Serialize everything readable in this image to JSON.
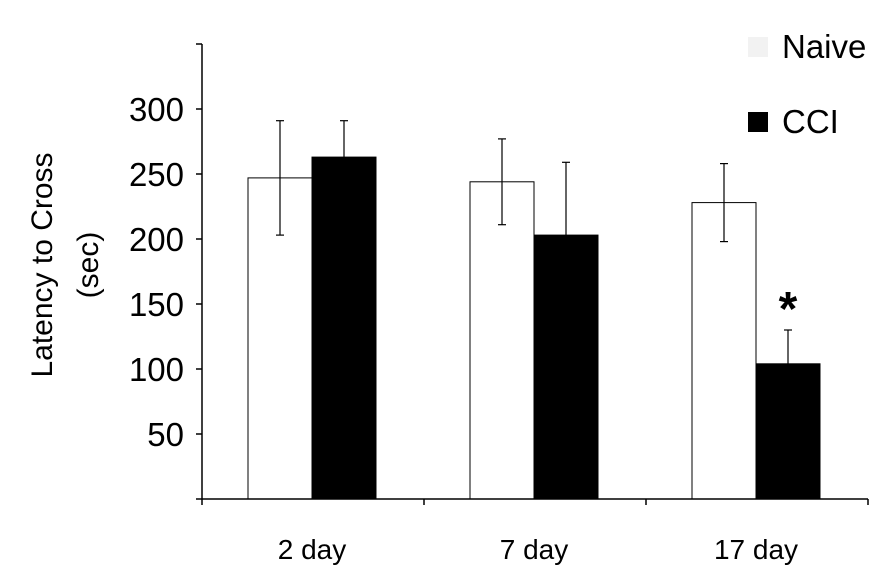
{
  "chart_data": {
    "type": "bar",
    "title": "",
    "xlabel": "",
    "ylabel_lines": [
      "Latency to Cross",
      "(sec)"
    ],
    "ylim": [
      0,
      300
    ],
    "yticks": [
      50,
      100,
      150,
      200,
      250,
      300
    ],
    "categories": [
      "2 day",
      "7 day",
      "17 day"
    ],
    "series": [
      {
        "name": "Naive",
        "values": [
          247,
          244,
          228
        ],
        "errors": [
          44,
          33,
          30
        ],
        "fill": "#ffffff"
      },
      {
        "name": "CCI",
        "values": [
          263,
          203,
          104
        ],
        "errors": [
          28,
          56,
          26
        ],
        "fill": "#000000"
      }
    ],
    "annotations": [
      {
        "text": "*",
        "category": "17 day",
        "series": "CCI"
      }
    ],
    "legend_position": "top-right",
    "grid": false
  }
}
